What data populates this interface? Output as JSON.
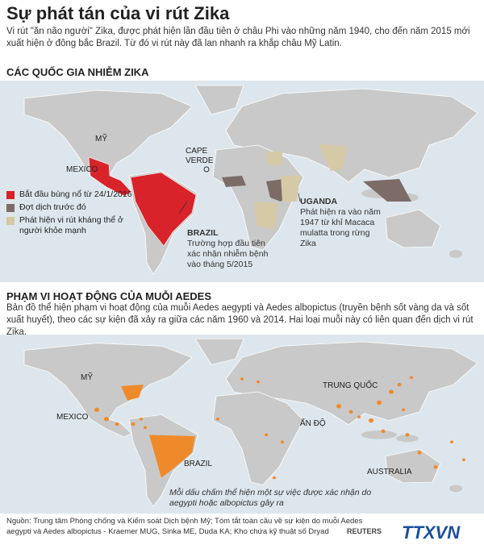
{
  "header": {
    "title": "Sự phát tán của vi rút Zika",
    "intro": "Vi rút \"ăn não người\" Zika, được phát hiện lần đầu tiên ở châu Phi vào những năm 1940, cho đến năm 2015 mới xuất hiện ở đông bắc Brazil. Từ đó vi rút này đã lan nhanh ra khắp châu Mỹ Latin."
  },
  "section1": {
    "heading": "CÁC QUỐC GIA NHIỄM ZIKA",
    "labels": [
      "MỸ",
      "MEXICO",
      "CAPE VERDE",
      "BRAZIL",
      "UGANDA"
    ],
    "brazil_note": "Trường hợp đầu tiên xác nhận nhiễm bệnh vào tháng 5/2015",
    "uganda_note": "Phát hiện ra vào năm 1947 từ khỉ Macaca mulatta trong rừng Zika",
    "legend": [
      "Bắt đầu bùng nổ từ 24/1/2016",
      "Đợt dịch trước đó",
      "Phát hiện vi rút kháng thể ở người khỏe mạnh"
    ]
  },
  "section2": {
    "heading": "PHẠM VI HOẠT ĐỘNG CỦA MUỖI AEDES",
    "description": "Bản đồ thể hiện phạm vi hoạt động của muỗi Aedes aegypti và Aedes albopictus (truyền bệnh sốt vàng da và sốt xuất huyết), theo các sự kiện đã xảy ra giữa các năm 1960 và 2014. Hai loại muỗi này có liên quan đến dịch vi rút Zika.",
    "labels": [
      "MỸ",
      "MEXICO",
      "TRUNG QUỐC",
      "ẤN ĐỘ",
      "BRAZIL",
      "AUSTRALIA"
    ],
    "note": "Mỗi dấu chấm thể hiện một sự việc được xác nhận do aegypti hoặc albopictus gây ra"
  },
  "footer": {
    "source": "Nguồn: Trung tâm Phòng chống và Kiểm soát Dịch bệnh Mỹ; Tóm tắt toàn cầu về sự kiện do muỗi Aedes aegypti và Aedes albopictus - Kraemer MUG, Sinka ME, Duda KA; Kho chứa kỹ thuật số Dryad",
    "credit": "REUTERS",
    "logo": "TTXVN"
  }
}
